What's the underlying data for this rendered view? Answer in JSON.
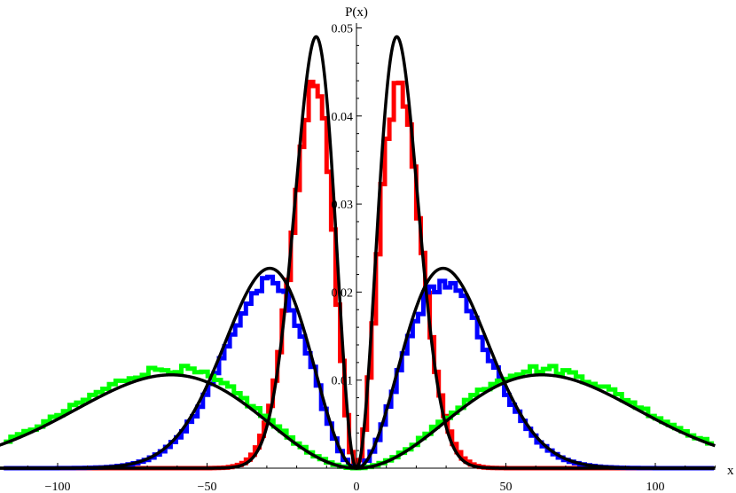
{
  "chart_data": {
    "type": "line",
    "title": "",
    "xlabel": "x",
    "ylabel": "P(x)",
    "xlim": [
      -120,
      120
    ],
    "ylim": [
      0,
      0.05
    ],
    "x_ticks": [
      -100,
      -50,
      0,
      50,
      100
    ],
    "x_tick_labels": [
      "−100",
      "−50",
      "0",
      "50",
      "100"
    ],
    "y_ticks": [
      0.01,
      0.02,
      0.03,
      0.04,
      0.05
    ],
    "y_tick_labels": [
      "0.01",
      "0.02",
      "0.03",
      "0.04",
      "0.05"
    ],
    "grid": false,
    "legend": "none",
    "histograms": [
      {
        "color": "#ff0000",
        "peak_x": 14,
        "peak_y": 0.0435,
        "support": [
          -25,
          25
        ]
      },
      {
        "color": "#0000ff",
        "peak_x": 29,
        "peak_y": 0.021,
        "support": [
          -55,
          55
        ]
      },
      {
        "color": "#00ff00",
        "peak_x": 62,
        "peak_y": 0.0113,
        "support": [
          -115,
          115
        ]
      }
    ],
    "fit_curves": [
      {
        "color": "#000000",
        "peak_x": 13.5,
        "peak_y": 0.049
      },
      {
        "color": "#000000",
        "peak_x": 29,
        "peak_y": 0.0227
      },
      {
        "color": "#000000",
        "peak_x": 62,
        "peak_y": 0.0106
      }
    ]
  }
}
